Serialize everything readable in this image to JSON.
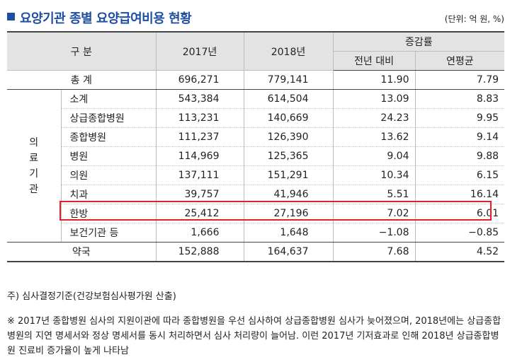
{
  "title": "요양기관 종별 요양급여비용 현황",
  "unit": "(단위: 억 원, %)",
  "table": {
    "header": {
      "category": "구 분",
      "year1": "2017년",
      "year2": "2018년",
      "growth": "증감률",
      "yoy": "전년 대비",
      "avg": "연평균"
    },
    "total": {
      "label": "총 계",
      "y2017": "696,271",
      "y2018": "779,141",
      "yoy": "11.90",
      "avg": "7.79"
    },
    "group_chars": [
      "의",
      "료",
      "기",
      "관"
    ],
    "medical": [
      {
        "label": "소계",
        "y2017": "543,384",
        "y2018": "614,504",
        "yoy": "13.09",
        "avg": "8.83"
      },
      {
        "label": "상급종합병원",
        "y2017": "113,231",
        "y2018": "140,669",
        "yoy": "24.23",
        "avg": "9.95"
      },
      {
        "label": "종합병원",
        "y2017": "111,237",
        "y2018": "126,390",
        "yoy": "13.62",
        "avg": "9.14"
      },
      {
        "label": "병원",
        "y2017": "114,969",
        "y2018": "125,365",
        "yoy": "9.04",
        "avg": "9.88"
      },
      {
        "label": "의원",
        "y2017": "137,111",
        "y2018": "151,291",
        "yoy": "10.34",
        "avg": "6.15"
      },
      {
        "label": "치과",
        "y2017": "39,757",
        "y2018": "41,946",
        "yoy": "5.51",
        "avg": "16.14"
      },
      {
        "label": "한방",
        "y2017": "25,412",
        "y2018": "27,196",
        "yoy": "7.02",
        "avg": "6.01"
      },
      {
        "label": "보건기관 등",
        "y2017": "1,666",
        "y2018": "1,648",
        "yoy": "−1.08",
        "avg": "−0.85"
      }
    ],
    "pharmacy": {
      "label": "약국",
      "y2017": "152,888",
      "y2018": "164,637",
      "yoy": "7.68",
      "avg": "4.52"
    }
  },
  "highlight_color": "#e0202a",
  "notes": {
    "source": "주) 심사결정기준(건강보험심사평가원 산출)",
    "remark": "※ 2017년 종합병원 심사의 지원이관에 따라 종합병원을 우선 심사하여 상급종합병원 심사가 늦어졌으며, 2018년에는 상급종합병원의 지연 명세서와 정상 명세서를 동시 처리하면서 심사 처리량이 늘어남. 이런 2017년 기저효과로 인해 2018년 상급종합병원 진료비 증가율이 높게 나타남"
  }
}
